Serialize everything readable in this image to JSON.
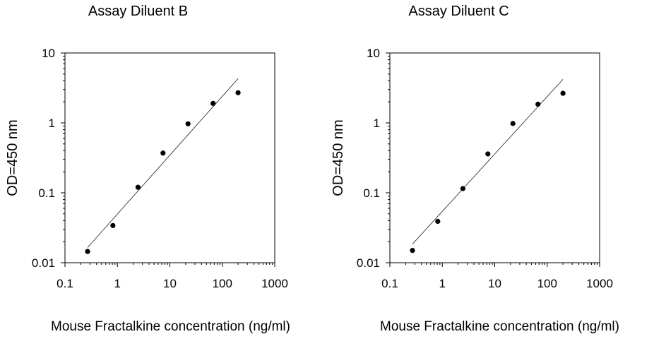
{
  "chart_data": [
    {
      "type": "scatter",
      "title": "Assay Diluent B",
      "xlabel": "Mouse Fractalkine concentration (ng/ml)",
      "ylabel": "OD=450 nm",
      "xscale": "log",
      "yscale": "log",
      "xlim": [
        0.1,
        1000
      ],
      "ylim": [
        0.01,
        10
      ],
      "xticks": [
        0.1,
        1,
        10,
        100,
        1000
      ],
      "xtick_labels": [
        "0.1",
        "1",
        "10",
        "100",
        "1000"
      ],
      "yticks": [
        0.01,
        0.1,
        1,
        10
      ],
      "ytick_labels": [
        "0.01",
        "0.1",
        "1",
        "10"
      ],
      "grid": false,
      "x": [
        0.27,
        0.82,
        2.47,
        7.4,
        22.2,
        66.7,
        200
      ],
      "y": [
        0.0145,
        0.034,
        0.12,
        0.37,
        0.97,
        1.9,
        2.7
      ],
      "fit_line": {
        "x": [
          0.27,
          200
        ],
        "y": [
          0.0165,
          4.3
        ]
      }
    },
    {
      "type": "scatter",
      "title": "Assay Diluent C",
      "xlabel": "Mouse Fractalkine concentration (ng/ml)",
      "ylabel": "OD=450 nm",
      "xscale": "log",
      "yscale": "log",
      "xlim": [
        0.1,
        1000
      ],
      "ylim": [
        0.01,
        10
      ],
      "xticks": [
        0.1,
        1,
        10,
        100,
        1000
      ],
      "xtick_labels": [
        "0.1",
        "1",
        "10",
        "100",
        "1000"
      ],
      "yticks": [
        0.01,
        0.1,
        1,
        10
      ],
      "ytick_labels": [
        "0.01",
        "0.1",
        "1",
        "10"
      ],
      "grid": false,
      "x": [
        0.27,
        0.82,
        2.47,
        7.4,
        22.2,
        66.7,
        200
      ],
      "y": [
        0.015,
        0.039,
        0.115,
        0.36,
        0.98,
        1.85,
        2.65
      ],
      "fit_line": {
        "x": [
          0.27,
          200
        ],
        "y": [
          0.0185,
          4.2
        ]
      }
    }
  ]
}
